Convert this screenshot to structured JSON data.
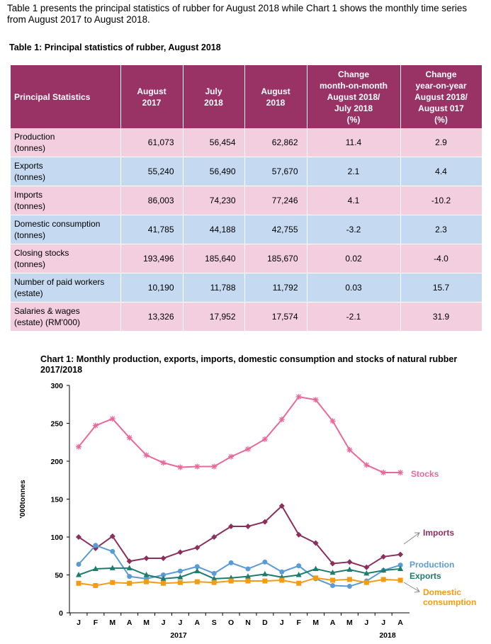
{
  "intro": "Table 1 presents the principal statistics of rubber for August 2018 while Chart 1 shows the monthly time series from August 2017 to August 2018.",
  "table": {
    "title": "Table 1: Principal statistics  of rubber, August  2018",
    "header": [
      "Principal Statistics",
      "August\n2017",
      "July\n2018",
      "August\n2018",
      "Change\nmonth-on-month\nAugust 2018/\nJuly 2018\n(%)",
      "Change\nyear-on-year\nAugust 2018/\nAugust 017\n(%)"
    ],
    "rows": [
      [
        "Production\n(tonnes)",
        "61,073",
        "56,454",
        "62,862",
        "11.4",
        "2.9"
      ],
      [
        "Exports\n(tonnes)",
        "55,240",
        "56,490",
        "57,670",
        "2.1",
        "4.4"
      ],
      [
        "Imports\n(tonnes)",
        "86,003",
        "74,230",
        "77,246",
        "4.1",
        "-10.2"
      ],
      [
        "Domestic consumption\n(tonnes)",
        "41,785",
        "44,188",
        "42,755",
        "-3.2",
        "2.3"
      ],
      [
        "Closing stocks\n(tonnes)",
        "193,496",
        "185,640",
        "185,670",
        "0.02",
        "-4.0"
      ],
      [
        "Number of paid workers\n(estate)",
        "10,190",
        "11,788",
        "11,792",
        "0.03",
        "15.7"
      ],
      [
        "Salaries & wages\n(estate) (RM'000)",
        "13,326",
        "17,952",
        "17,574",
        "-2.1",
        "31.9"
      ]
    ]
  },
  "chart_data": {
    "type": "line",
    "title": "Chart 1: Monthly production, exports, imports, domestic consumption and stocks of natural rubber 2017/2018",
    "y_label": "'000tonnes",
    "categories": [
      "J",
      "F",
      "M",
      "A",
      "M",
      "J",
      "J",
      "A",
      "S",
      "O",
      "N",
      "D",
      "J",
      "F",
      "M",
      "A",
      "M",
      "J",
      "J",
      "A"
    ],
    "year_labels": [
      "2017",
      "2018"
    ],
    "ylim": [
      0,
      300
    ],
    "yticks": [
      0,
      50,
      100,
      150,
      200,
      250,
      300
    ],
    "series": [
      {
        "name": "Stocks",
        "color": "#e8689b",
        "marker": "asterisk",
        "values": [
          219,
          247,
          256,
          231,
          208,
          198,
          192,
          193,
          193,
          206,
          216,
          229,
          255,
          285,
          281,
          253,
          215,
          195,
          185,
          185
        ]
      },
      {
        "name": "Imports",
        "color": "#8b2f5e",
        "marker": "diamond",
        "values": [
          100,
          85,
          101,
          68,
          72,
          72,
          80,
          86,
          100,
          114,
          114,
          120,
          141,
          103,
          92,
          65,
          67,
          60,
          74,
          77
        ]
      },
      {
        "name": "Production",
        "color": "#5b9bd5",
        "marker": "circle",
        "values": [
          64,
          89,
          81,
          48,
          45,
          50,
          55,
          61,
          52,
          66,
          58,
          67,
          54,
          62,
          45,
          36,
          35,
          42,
          56,
          63
        ]
      },
      {
        "name": "Exports",
        "color": "#1e7b6f",
        "marker": "triangle",
        "values": [
          50,
          58,
          59,
          59,
          50,
          45,
          47,
          55,
          45,
          46,
          48,
          51,
          47,
          50,
          58,
          53,
          57,
          52,
          56,
          58
        ]
      },
      {
        "name": "Domestic consumption",
        "color": "#f39c12",
        "marker": "square",
        "values": [
          39,
          36,
          40,
          39,
          41,
          39,
          40,
          41,
          40,
          42,
          42,
          42,
          43,
          39,
          46,
          43,
          44,
          40,
          44,
          43
        ]
      }
    ]
  }
}
